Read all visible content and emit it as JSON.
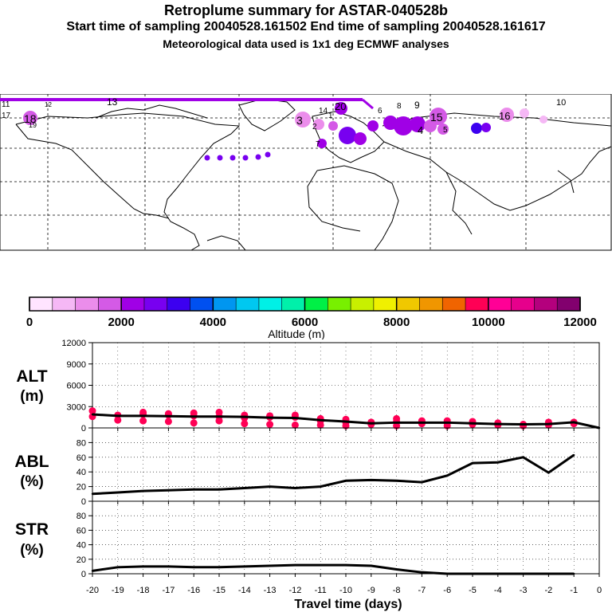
{
  "header": {
    "title": "Retroplume summary for ASTAR-040528b",
    "sampling": "Start time of sampling 20040528.161502      End time of sampling 20040528.161617",
    "met": "Meteorological data used is 1x1 deg ECMWF analyses"
  },
  "colors": {
    "line": "#000000",
    "dot": "#ff0055",
    "colorbar": [
      "#ffe4ff",
      "#f5b8f5",
      "#eb8deb",
      "#d45ae6",
      "#a000e6",
      "#7800f0",
      "#3c00f0",
      "#0050f0",
      "#0096f0",
      "#00c8f0",
      "#00f0e6",
      "#00f0aa",
      "#00f046",
      "#78f000",
      "#c8f000",
      "#f0f000",
      "#f0c800",
      "#f09600",
      "#f06400",
      "#ff0055",
      "#ff0096",
      "#e6008c",
      "#b4007d",
      "#82006e"
    ]
  },
  "map": {
    "plume_labels": [
      "11",
      "12",
      "13",
      "14",
      "15",
      "16",
      "17",
      "18",
      "19",
      "20",
      "1",
      "2",
      "3",
      "4",
      "5",
      "6",
      "7",
      "8",
      "9",
      "10"
    ]
  },
  "chart_data": [
    {
      "type": "colorbar",
      "xlabel": "Altitude (m)",
      "tick_labels": [
        "0",
        "2000",
        "4000",
        "6000",
        "8000",
        "10000",
        "12000"
      ],
      "range": [
        0,
        12000
      ]
    },
    {
      "type": "line",
      "ylabel": "ALT\n(m)",
      "x": [
        -20,
        -19,
        -18,
        -17,
        -16,
        -15,
        -14,
        -13,
        -12,
        -11,
        -10,
        -9,
        -8,
        -7,
        -6,
        -5,
        -4,
        -3,
        -2,
        -1,
        0
      ],
      "values": [
        1900,
        1700,
        1700,
        1650,
        1600,
        1600,
        1550,
        1450,
        1400,
        1100,
        900,
        650,
        750,
        750,
        750,
        650,
        550,
        500,
        550,
        800,
        0
      ],
      "ylim": [
        0,
        12000
      ],
      "yticks": [
        "0",
        "3000",
        "6000",
        "9000",
        "12000"
      ],
      "scatter": [
        {
          "x": -20,
          "y": 1600
        },
        {
          "x": -20,
          "y": 2400
        },
        {
          "x": -19,
          "y": 1800
        },
        {
          "x": -19,
          "y": 1100
        },
        {
          "x": -18,
          "y": 1900
        },
        {
          "x": -18,
          "y": 2200
        },
        {
          "x": -18,
          "y": 1000
        },
        {
          "x": -17,
          "y": 1800
        },
        {
          "x": -17,
          "y": 2000
        },
        {
          "x": -17,
          "y": 900
        },
        {
          "x": -16,
          "y": 2100
        },
        {
          "x": -16,
          "y": 1700
        },
        {
          "x": -16,
          "y": 700
        },
        {
          "x": -15,
          "y": 2200
        },
        {
          "x": -15,
          "y": 1600
        },
        {
          "x": -15,
          "y": 1000
        },
        {
          "x": -14,
          "y": 1800
        },
        {
          "x": -14,
          "y": 1400
        },
        {
          "x": -14,
          "y": 600
        },
        {
          "x": -13,
          "y": 1700
        },
        {
          "x": -13,
          "y": 1500
        },
        {
          "x": -13,
          "y": 500
        },
        {
          "x": -12,
          "y": 1800
        },
        {
          "x": -12,
          "y": 1500
        },
        {
          "x": -12,
          "y": 400
        },
        {
          "x": -11,
          "y": 1300
        },
        {
          "x": -11,
          "y": 1000
        },
        {
          "x": -11,
          "y": 400
        },
        {
          "x": -10,
          "y": 1200
        },
        {
          "x": -10,
          "y": 800
        },
        {
          "x": -10,
          "y": 300
        },
        {
          "x": -9,
          "y": 800
        },
        {
          "x": -9,
          "y": 500
        },
        {
          "x": -8,
          "y": 1300
        },
        {
          "x": -8,
          "y": 900
        },
        {
          "x": -8,
          "y": 300
        },
        {
          "x": -7,
          "y": 1000
        },
        {
          "x": -7,
          "y": 600
        },
        {
          "x": -6,
          "y": 1000
        },
        {
          "x": -6,
          "y": 700
        },
        {
          "x": -6,
          "y": 300
        },
        {
          "x": -5,
          "y": 900
        },
        {
          "x": -5,
          "y": 500
        },
        {
          "x": -4,
          "y": 700
        },
        {
          "x": -4,
          "y": 400
        },
        {
          "x": -3,
          "y": 500
        },
        {
          "x": -3,
          "y": 300
        },
        {
          "x": -2,
          "y": 800
        },
        {
          "x": -2,
          "y": 400
        },
        {
          "x": -1,
          "y": 800
        },
        {
          "x": -1,
          "y": 600
        }
      ]
    },
    {
      "type": "line",
      "ylabel": "ABL\n(%)",
      "x": [
        -20,
        -19,
        -18,
        -17,
        -16,
        -15,
        -14,
        -13,
        -12,
        -11,
        -10,
        -9,
        -8,
        -7,
        -6,
        -5,
        -4,
        -3,
        -2,
        -1
      ],
      "values": [
        10,
        12,
        14,
        15,
        16,
        16,
        18,
        20,
        18,
        20,
        28,
        29,
        28,
        26,
        35,
        52,
        53,
        60,
        39,
        63
      ],
      "ylim": [
        0,
        100
      ],
      "yticks": [
        "0",
        "20",
        "40",
        "60",
        "80"
      ]
    },
    {
      "type": "line",
      "ylabel": "STR\n(%)",
      "xlabel": "Travel time (days)",
      "x": [
        -20,
        -19,
        -18,
        -17,
        -16,
        -15,
        -14,
        -13,
        -12,
        -11,
        -10,
        -9,
        -8,
        -7,
        -6,
        -5,
        -4,
        -3,
        -2,
        -1
      ],
      "values": [
        4,
        9,
        10,
        10,
        9,
        9,
        10,
        11,
        12,
        12,
        12,
        11,
        6,
        2,
        0,
        0,
        0,
        0,
        0,
        0
      ],
      "ylim": [
        0,
        100
      ],
      "yticks": [
        "0",
        "20",
        "40",
        "60",
        "80"
      ],
      "xticks": [
        "-20",
        "-19",
        "-18",
        "-17",
        "-16",
        "-15",
        "-14",
        "-13",
        "-12",
        "-11",
        "-10",
        "-9",
        "-8",
        "-7",
        "-6",
        "-5",
        "-4",
        "-3",
        "-2",
        "-1",
        "0"
      ]
    }
  ]
}
